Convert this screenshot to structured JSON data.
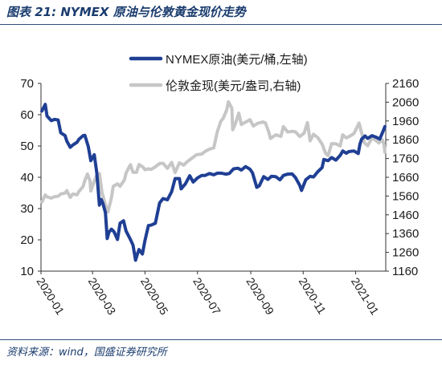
{
  "title": "图表 21:  NYMEX 原油与伦敦黄金现价走势",
  "source": "资料来源：wind，国盛证券研究所",
  "colors": {
    "oil": "#1f3f94",
    "gold": "#c6c6c6",
    "frame": "#2d4f7f",
    "title": "#1a3c6e"
  },
  "chart_data": {
    "type": "line",
    "x_axis": {
      "type": "date",
      "range": [
        "2020-01-01",
        "2021-02-05"
      ],
      "tick_labels": [
        "2020-01",
        "2020-03",
        "2020-05",
        "2020-07",
        "2020-09",
        "2020-11",
        "2021-01"
      ]
    },
    "y_left": {
      "range": [
        10,
        70
      ],
      "ticks": [
        10,
        20,
        30,
        40,
        50,
        60,
        70
      ]
    },
    "y_right": {
      "range": [
        1160,
        2160
      ],
      "ticks": [
        1160,
        1260,
        1360,
        1460,
        1560,
        1660,
        1760,
        1860,
        1960,
        2060,
        2160
      ]
    },
    "grid": false,
    "legend": {
      "position": "top-center"
    },
    "series": [
      {
        "name": "NYMEX原油(美元/桶,左轴)",
        "axis": "left",
        "color": "#1f3f94",
        "points": [
          [
            "2020-01-02",
            61.2
          ],
          [
            "2020-01-06",
            63.3
          ],
          [
            "2020-01-08",
            59.6
          ],
          [
            "2020-01-13",
            58.1
          ],
          [
            "2020-01-17",
            58.5
          ],
          [
            "2020-01-21",
            58.3
          ],
          [
            "2020-01-24",
            54.2
          ],
          [
            "2020-01-29",
            53.3
          ],
          [
            "2020-01-31",
            51.6
          ],
          [
            "2020-02-04",
            49.6
          ],
          [
            "2020-02-07",
            50.3
          ],
          [
            "2020-02-12",
            51.2
          ],
          [
            "2020-02-14",
            52.1
          ],
          [
            "2020-02-19",
            53.3
          ],
          [
            "2020-02-21",
            53.4
          ],
          [
            "2020-02-25",
            49.9
          ],
          [
            "2020-02-28",
            45.3
          ],
          [
            "2020-03-03",
            47.2
          ],
          [
            "2020-03-06",
            41.3
          ],
          [
            "2020-03-09",
            31.1
          ],
          [
            "2020-03-11",
            32.9
          ],
          [
            "2020-03-13",
            31.7
          ],
          [
            "2020-03-16",
            28.7
          ],
          [
            "2020-03-18",
            20.4
          ],
          [
            "2020-03-20",
            22.4
          ],
          [
            "2020-03-23",
            23.4
          ],
          [
            "2020-03-26",
            22.6
          ],
          [
            "2020-03-30",
            20.1
          ],
          [
            "2020-04-02",
            25.3
          ],
          [
            "2020-04-06",
            26.1
          ],
          [
            "2020-04-09",
            22.8
          ],
          [
            "2020-04-14",
            20.1
          ],
          [
            "2020-04-17",
            18.3
          ],
          [
            "2020-04-20",
            13.5
          ],
          [
            "2020-04-22",
            15.3
          ],
          [
            "2020-04-24",
            16.9
          ],
          [
            "2020-04-28",
            15.5
          ],
          [
            "2020-05-01",
            19.8
          ],
          [
            "2020-05-05",
            24.6
          ],
          [
            "2020-05-08",
            24.7
          ],
          [
            "2020-05-13",
            25.3
          ],
          [
            "2020-05-18",
            31.8
          ],
          [
            "2020-05-22",
            33.2
          ],
          [
            "2020-05-27",
            32.8
          ],
          [
            "2020-06-01",
            35.4
          ],
          [
            "2020-06-05",
            39.6
          ],
          [
            "2020-06-10",
            39.6
          ],
          [
            "2020-06-12",
            36.3
          ],
          [
            "2020-06-17",
            37.9
          ],
          [
            "2020-06-22",
            40.5
          ],
          [
            "2020-06-26",
            38.5
          ],
          [
            "2020-07-01",
            39.8
          ],
          [
            "2020-07-06",
            40.6
          ],
          [
            "2020-07-10",
            40.6
          ],
          [
            "2020-07-15",
            41.2
          ],
          [
            "2020-07-20",
            40.8
          ],
          [
            "2020-07-24",
            41.3
          ],
          [
            "2020-07-29",
            41.3
          ],
          [
            "2020-08-03",
            41.0
          ],
          [
            "2020-08-07",
            41.2
          ],
          [
            "2020-08-12",
            42.7
          ],
          [
            "2020-08-17",
            42.9
          ],
          [
            "2020-08-21",
            42.3
          ],
          [
            "2020-08-26",
            43.4
          ],
          [
            "2020-08-31",
            42.6
          ],
          [
            "2020-09-03",
            41.4
          ],
          [
            "2020-09-08",
            36.8
          ],
          [
            "2020-09-11",
            37.3
          ],
          [
            "2020-09-16",
            40.2
          ],
          [
            "2020-09-21",
            39.3
          ],
          [
            "2020-09-25",
            40.3
          ],
          [
            "2020-09-30",
            40.2
          ],
          [
            "2020-10-05",
            39.2
          ],
          [
            "2020-10-09",
            40.6
          ],
          [
            "2020-10-14",
            41.0
          ],
          [
            "2020-10-19",
            41.1
          ],
          [
            "2020-10-23",
            39.9
          ],
          [
            "2020-10-28",
            37.4
          ],
          [
            "2020-10-30",
            35.8
          ],
          [
            "2020-11-04",
            39.2
          ],
          [
            "2020-11-09",
            40.3
          ],
          [
            "2020-11-13",
            40.1
          ],
          [
            "2020-11-18",
            41.8
          ],
          [
            "2020-11-23",
            43.1
          ],
          [
            "2020-11-25",
            45.7
          ],
          [
            "2020-11-30",
            45.3
          ],
          [
            "2020-12-04",
            46.3
          ],
          [
            "2020-12-09",
            45.5
          ],
          [
            "2020-12-14",
            47.0
          ],
          [
            "2020-12-17",
            48.4
          ],
          [
            "2020-12-21",
            47.7
          ],
          [
            "2020-12-24",
            48.2
          ],
          [
            "2020-12-30",
            48.4
          ],
          [
            "2021-01-04",
            47.6
          ],
          [
            "2021-01-06",
            50.6
          ],
          [
            "2021-01-08",
            52.2
          ],
          [
            "2021-01-12",
            53.2
          ],
          [
            "2021-01-15",
            52.4
          ],
          [
            "2021-01-20",
            53.3
          ],
          [
            "2021-01-25",
            52.8
          ],
          [
            "2021-01-29",
            52.2
          ],
          [
            "2021-02-02",
            54.8
          ],
          [
            "2021-02-04",
            56.2
          ]
        ]
      },
      {
        "name": "伦敦金现(美元/盎司,右轴)",
        "axis": "right",
        "color": "#c6c6c6",
        "points": [
          [
            "2020-01-02",
            1528
          ],
          [
            "2020-01-06",
            1566
          ],
          [
            "2020-01-08",
            1556
          ],
          [
            "2020-01-13",
            1549
          ],
          [
            "2020-01-17",
            1557
          ],
          [
            "2020-01-21",
            1559
          ],
          [
            "2020-01-24",
            1571
          ],
          [
            "2020-01-29",
            1576
          ],
          [
            "2020-01-31",
            1589
          ],
          [
            "2020-02-04",
            1553
          ],
          [
            "2020-02-07",
            1571
          ],
          [
            "2020-02-12",
            1567
          ],
          [
            "2020-02-14",
            1584
          ],
          [
            "2020-02-19",
            1611
          ],
          [
            "2020-02-21",
            1643
          ],
          [
            "2020-02-24",
            1677
          ],
          [
            "2020-02-27",
            1641
          ],
          [
            "2020-02-28",
            1587
          ],
          [
            "2020-03-03",
            1640
          ],
          [
            "2020-03-06",
            1673
          ],
          [
            "2020-03-09",
            1680
          ],
          [
            "2020-03-12",
            1576
          ],
          [
            "2020-03-16",
            1514
          ],
          [
            "2020-03-19",
            1476
          ],
          [
            "2020-03-23",
            1552
          ],
          [
            "2020-03-25",
            1612
          ],
          [
            "2020-03-30",
            1625
          ],
          [
            "2020-04-02",
            1612
          ],
          [
            "2020-04-07",
            1646
          ],
          [
            "2020-04-09",
            1683
          ],
          [
            "2020-04-14",
            1727
          ],
          [
            "2020-04-17",
            1687
          ],
          [
            "2020-04-21",
            1686
          ],
          [
            "2020-04-24",
            1728
          ],
          [
            "2020-04-29",
            1713
          ],
          [
            "2020-05-01",
            1700
          ],
          [
            "2020-05-05",
            1705
          ],
          [
            "2020-05-08",
            1702
          ],
          [
            "2020-05-13",
            1716
          ],
          [
            "2020-05-18",
            1733
          ],
          [
            "2020-05-22",
            1735
          ],
          [
            "2020-05-27",
            1708
          ],
          [
            "2020-06-01",
            1739
          ],
          [
            "2020-06-05",
            1685
          ],
          [
            "2020-06-10",
            1737
          ],
          [
            "2020-06-15",
            1725
          ],
          [
            "2020-06-19",
            1743
          ],
          [
            "2020-06-24",
            1760
          ],
          [
            "2020-06-30",
            1780
          ],
          [
            "2020-07-06",
            1784
          ],
          [
            "2020-07-10",
            1798
          ],
          [
            "2020-07-15",
            1810
          ],
          [
            "2020-07-20",
            1817
          ],
          [
            "2020-07-24",
            1901
          ],
          [
            "2020-07-28",
            1957
          ],
          [
            "2020-07-31",
            1975
          ],
          [
            "2020-08-04",
            2018
          ],
          [
            "2020-08-06",
            2062
          ],
          [
            "2020-08-10",
            2028
          ],
          [
            "2020-08-11",
            1913
          ],
          [
            "2020-08-14",
            1944
          ],
          [
            "2020-08-18",
            2002
          ],
          [
            "2020-08-21",
            1941
          ],
          [
            "2020-08-26",
            1954
          ],
          [
            "2020-08-31",
            1967
          ],
          [
            "2020-09-04",
            1933
          ],
          [
            "2020-09-09",
            1947
          ],
          [
            "2020-09-15",
            1955
          ],
          [
            "2020-09-18",
            1950
          ],
          [
            "2020-09-22",
            1900
          ],
          [
            "2020-09-24",
            1867
          ],
          [
            "2020-09-30",
            1886
          ],
          [
            "2020-10-06",
            1878
          ],
          [
            "2020-10-09",
            1930
          ],
          [
            "2020-10-14",
            1901
          ],
          [
            "2020-10-19",
            1905
          ],
          [
            "2020-10-23",
            1902
          ],
          [
            "2020-10-28",
            1877
          ],
          [
            "2020-11-02",
            1895
          ],
          [
            "2020-11-06",
            1951
          ],
          [
            "2020-11-09",
            1854
          ],
          [
            "2020-11-13",
            1889
          ],
          [
            "2020-11-18",
            1871
          ],
          [
            "2020-11-23",
            1837
          ],
          [
            "2020-11-27",
            1788
          ],
          [
            "2020-11-30",
            1776
          ],
          [
            "2020-12-04",
            1839
          ],
          [
            "2020-12-09",
            1838
          ],
          [
            "2020-12-14",
            1827
          ],
          [
            "2020-12-17",
            1886
          ],
          [
            "2020-12-21",
            1870
          ],
          [
            "2020-12-24",
            1876
          ],
          [
            "2020-12-30",
            1893
          ],
          [
            "2021-01-05",
            1949
          ],
          [
            "2021-01-07",
            1913
          ],
          [
            "2021-01-11",
            1844
          ],
          [
            "2021-01-15",
            1828
          ],
          [
            "2021-01-20",
            1870
          ],
          [
            "2021-01-25",
            1855
          ],
          [
            "2021-01-28",
            1843
          ],
          [
            "2021-02-01",
            1860
          ],
          [
            "2021-02-03",
            1834
          ],
          [
            "2021-02-04",
            1793
          ]
        ]
      }
    ]
  }
}
